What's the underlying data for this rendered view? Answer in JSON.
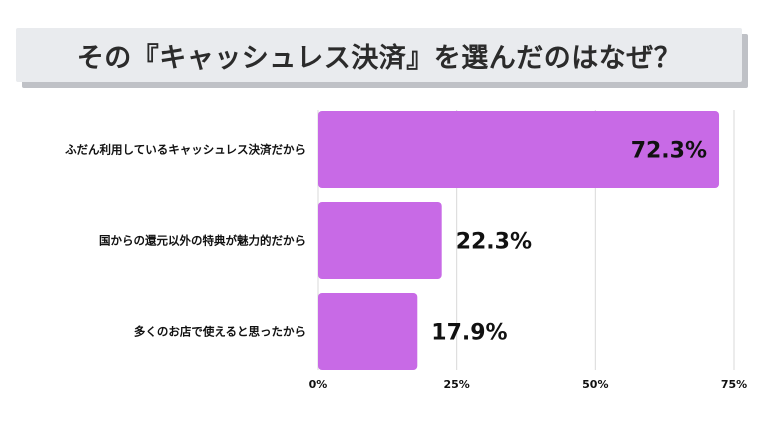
{
  "title": "その『キャッシュレス決済』を選んだのはなぜ？",
  "chart_data": {
    "type": "bar",
    "orientation": "horizontal",
    "title": "その『キャッシュレス決済』を選んだのはなぜ？",
    "categories": [
      "ふだん利用しているキャッシュレス決済だから",
      "国からの還元以外の特典が魅力的だから",
      "多くのお店で使えると思ったから"
    ],
    "values": [
      72.3,
      22.3,
      17.9
    ],
    "value_labels": [
      "72.3%",
      "22.3%",
      "17.9%"
    ],
    "xlim": [
      0,
      75
    ],
    "ticks": [
      0,
      25,
      50,
      75
    ],
    "tick_labels": [
      "0%",
      "25%",
      "50%",
      "75%"
    ],
    "grid": true,
    "legend": "none",
    "bar_color": "#c86ae6",
    "grid_color": "#d9d9d9"
  }
}
